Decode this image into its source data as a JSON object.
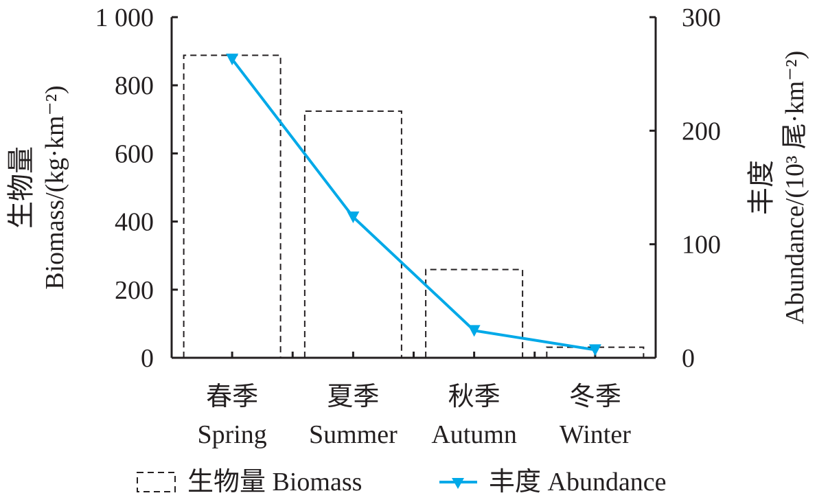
{
  "chart_data": {
    "type": "bar+line",
    "categories": [
      [
        "春季",
        "Spring"
      ],
      [
        "夏季",
        "Summer"
      ],
      [
        "秋季",
        "Autumn"
      ],
      [
        "冬季",
        "Winter"
      ]
    ],
    "series": [
      {
        "name": "生物量 Biomass",
        "type": "bar",
        "axis": "left",
        "style": "dashed-outline",
        "values": [
          888,
          724,
          259,
          31
        ]
      },
      {
        "name": "丰度 Abundance",
        "type": "line",
        "axis": "right",
        "marker": "triangle-down",
        "color": "#00a9e8",
        "values": [
          263,
          124,
          24,
          7
        ]
      }
    ],
    "ylabel_left": [
      "生物量",
      "Biomass/(kg·km⁻²)"
    ],
    "ylabel_right": [
      "丰度",
      "Abundance/(10³ 尾·km⁻²)"
    ],
    "ylim_left": [
      0,
      1000
    ],
    "yticks_left": [
      "0",
      "200",
      "400",
      "600",
      "800",
      "1 000"
    ],
    "ylim_right": [
      0,
      300
    ],
    "yticks_right": [
      "0",
      "100",
      "200",
      "300"
    ],
    "grid": false,
    "legend": "bottom"
  }
}
